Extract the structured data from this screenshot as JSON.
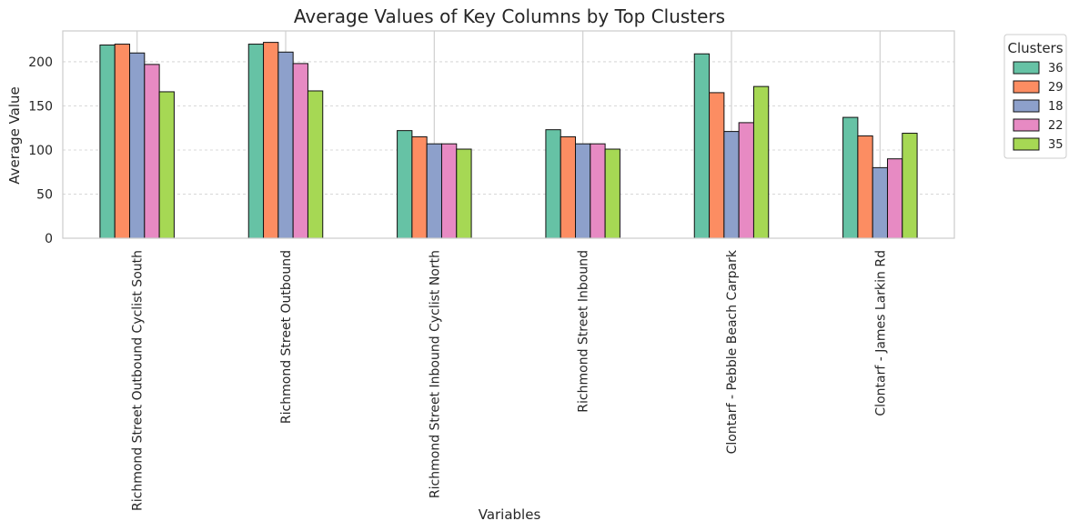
{
  "chart_data": {
    "type": "bar",
    "title": "Average Values of Key Columns by Top Clusters",
    "xlabel": "Variables",
    "ylabel": "Average Value",
    "ylim": [
      0,
      235
    ],
    "yticks": [
      0,
      50,
      100,
      150,
      200
    ],
    "grid": true,
    "legend_title": "Clusters",
    "legend_position": "outside-top-right",
    "categories": [
      "Richmond Street Outbound Cyclist South",
      "Richmond Street Outbound",
      "Richmond Street Inbound Cyclist North",
      "Richmond Street Inbound",
      "Clontarf - Pebble Beach Carpark",
      "Clontarf - James Larkin Rd"
    ],
    "series": [
      {
        "name": "36",
        "color": "#66c2a5",
        "values": [
          219,
          220,
          122,
          123,
          209,
          137
        ]
      },
      {
        "name": "29",
        "color": "#fc8d62",
        "values": [
          220,
          222,
          115,
          115,
          165,
          116
        ]
      },
      {
        "name": "18",
        "color": "#8da0cb",
        "values": [
          210,
          211,
          107,
          107,
          121,
          80
        ]
      },
      {
        "name": "22",
        "color": "#e78ac3",
        "values": [
          197,
          198,
          107,
          107,
          131,
          90
        ]
      },
      {
        "name": "35",
        "color": "#a6d854",
        "values": [
          166,
          167,
          101,
          101,
          172,
          119
        ]
      }
    ]
  }
}
